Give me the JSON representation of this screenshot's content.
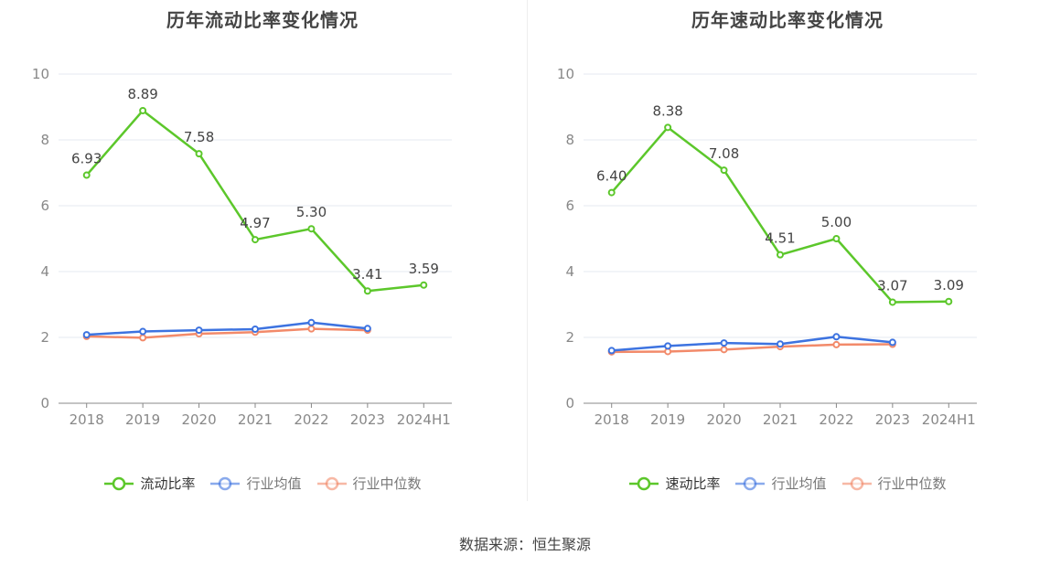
{
  "chart_data": [
    {
      "type": "line",
      "title": "历年流动比率变化情况",
      "categories": [
        "2018",
        "2019",
        "2020",
        "2021",
        "2022",
        "2023",
        "2024H1"
      ],
      "yticks": [
        "0",
        "2",
        "4",
        "6",
        "8",
        "10"
      ],
      "ylim": [
        0,
        10
      ],
      "grid": true,
      "legend_position": "bottom",
      "series": [
        {
          "name": "流动比率",
          "color": "#5cc72b",
          "values": [
            6.93,
            8.89,
            7.58,
            4.97,
            5.3,
            3.41,
            3.59
          ],
          "labels": [
            "6.93",
            "8.89",
            "7.58",
            "4.97",
            "5.30",
            "3.41",
            "3.59"
          ]
        },
        {
          "name": "行业均值",
          "color": "#3d73e0",
          "values": [
            2.08,
            2.18,
            2.22,
            2.25,
            2.45,
            2.27,
            null
          ]
        },
        {
          "name": "行业中位数",
          "color": "#f28a6a",
          "values": [
            2.03,
            1.99,
            2.11,
            2.16,
            2.26,
            2.22,
            null
          ]
        }
      ]
    },
    {
      "type": "line",
      "title": "历年速动比率变化情况",
      "categories": [
        "2018",
        "2019",
        "2020",
        "2021",
        "2022",
        "2023",
        "2024H1"
      ],
      "yticks": [
        "0",
        "2",
        "4",
        "6",
        "8",
        "10"
      ],
      "ylim": [
        0,
        10
      ],
      "grid": true,
      "legend_position": "bottom",
      "series": [
        {
          "name": "速动比率",
          "color": "#5cc72b",
          "values": [
            6.4,
            8.38,
            7.08,
            4.51,
            5.0,
            3.07,
            3.09
          ],
          "labels": [
            "6.40",
            "8.38",
            "7.08",
            "4.51",
            "5.00",
            "3.07",
            "3.09"
          ]
        },
        {
          "name": "行业均值",
          "color": "#3d73e0",
          "values": [
            1.6,
            1.74,
            1.83,
            1.8,
            2.02,
            1.85,
            null
          ]
        },
        {
          "name": "行业中位数",
          "color": "#f28a6a",
          "values": [
            1.56,
            1.57,
            1.63,
            1.72,
            1.78,
            1.79,
            null
          ]
        }
      ]
    }
  ],
  "source": "数据来源：恒生聚源"
}
